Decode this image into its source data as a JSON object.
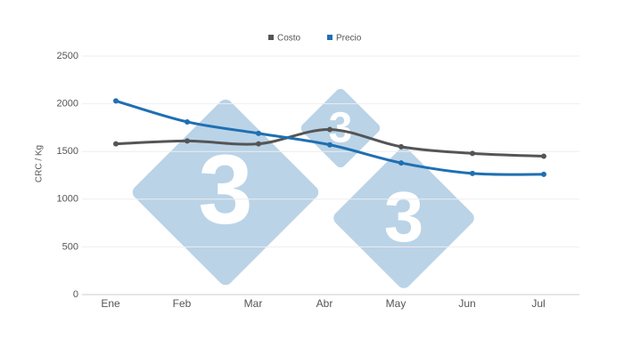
{
  "chart_data": {
    "type": "line",
    "y_label": "CRC / Kg",
    "categories": [
      "Ene",
      "Feb",
      "Mar",
      "Abr",
      "May",
      "Jun",
      "Jul"
    ],
    "series": [
      {
        "name": "Costo",
        "color": "#555555",
        "values": [
          1580,
          1610,
          1580,
          1730,
          1550,
          1480,
          1450
        ]
      },
      {
        "name": "Precio",
        "color": "#1f6fb2",
        "values": [
          2030,
          1810,
          1690,
          1570,
          1380,
          1270,
          1260
        ]
      }
    ],
    "ylim": [
      0,
      2500
    ],
    "yticks": [
      0,
      500,
      1000,
      1500,
      2000,
      2500
    ],
    "grid": true,
    "legend": "top",
    "watermark": [
      "3",
      "3",
      "3"
    ]
  }
}
